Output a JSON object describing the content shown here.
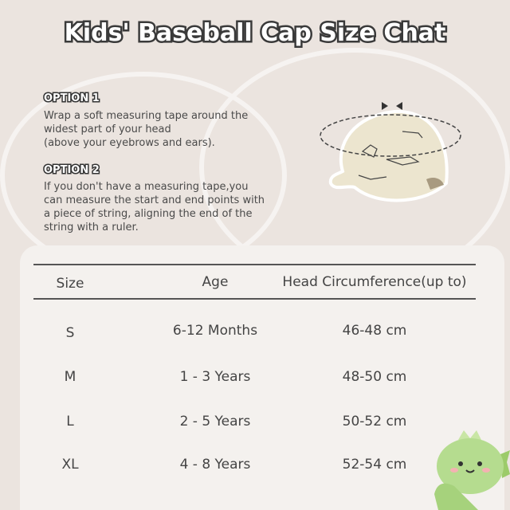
{
  "title": "Kids' Baseball Cap Size Chat",
  "option1": {
    "label": "OPTION 1",
    "lines": [
      "Wrap a soft measuring tape around the",
      "widest part of your head",
      "(above your eyebrows and ears)."
    ]
  },
  "option2": {
    "label": "OPTION 2",
    "lines": [
      "If you don't have a measuring tape,you",
      "can measure the start and end points with",
      "a piece of string, aligning the end of the",
      "string with a ruler."
    ]
  },
  "table": {
    "headers": [
      "Size",
      "Age",
      "Head Circumference(up to)"
    ],
    "rows": [
      [
        "S",
        "6-12 Months",
        "46-48 cm"
      ],
      [
        "M",
        "1 - 3 Years",
        "48-50 cm"
      ],
      [
        "L",
        "2 - 5 Years",
        "50-52 cm"
      ],
      [
        "XL",
        "4 - 8 Years",
        "52-54 cm"
      ]
    ]
  },
  "colors": {
    "background": "#ebe4df",
    "card": "#f4f1ee",
    "cap": "#ece5cf",
    "mascot": "#b5dc8f"
  }
}
